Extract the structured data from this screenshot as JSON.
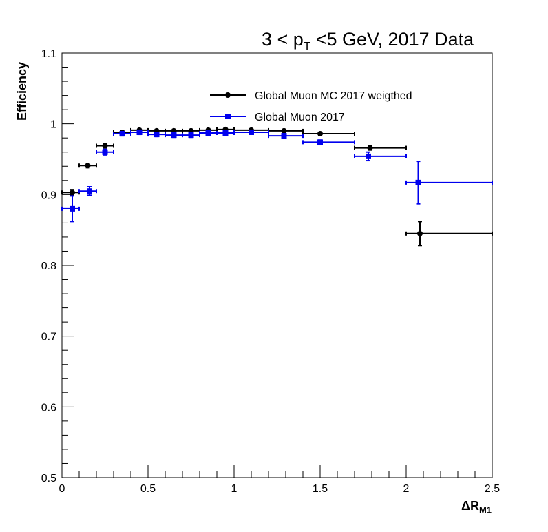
{
  "chart_data": {
    "type": "scatter",
    "title": {
      "prefix": "3 < p",
      "sub": "T",
      "suffix": " <5 GeV, 2017 Data"
    },
    "xlabel": {
      "main": "ΔR",
      "sub": "M1"
    },
    "ylabel": "Efficiency",
    "xlim": [
      0,
      2.5
    ],
    "ylim": [
      0.5,
      1.1
    ],
    "xticks": [
      0,
      0.5,
      1,
      1.5,
      2,
      2.5
    ],
    "xtick_labels": [
      "0",
      "0.5",
      "1",
      "1.5",
      "2",
      "2.5"
    ],
    "yticks": [
      0.5,
      0.6,
      0.7,
      0.8,
      0.9,
      1,
      1.1
    ],
    "ytick_labels": [
      "0.5",
      "0.6",
      "0.7",
      "0.8",
      "0.9",
      "1",
      "1.1"
    ],
    "grid": false,
    "legend_position": "top-right",
    "series": [
      {
        "name": "Global Muon MC 2017 weigthed",
        "color": "#000000",
        "marker": "circle",
        "points": [
          {
            "x": 0.06,
            "xlo": 0.0,
            "xhi": 0.1,
            "y": 0.903,
            "yerr": 0.004
          },
          {
            "x": 0.15,
            "xlo": 0.1,
            "xhi": 0.2,
            "y": 0.941,
            "yerr": 0.003
          },
          {
            "x": 0.25,
            "xlo": 0.2,
            "xhi": 0.3,
            "y": 0.969,
            "yerr": 0.003
          },
          {
            "x": 0.35,
            "xlo": 0.3,
            "xhi": 0.4,
            "y": 0.988,
            "yerr": 0.002
          },
          {
            "x": 0.45,
            "xlo": 0.4,
            "xhi": 0.5,
            "y": 0.991,
            "yerr": 0.002
          },
          {
            "x": 0.55,
            "xlo": 0.5,
            "xhi": 0.6,
            "y": 0.99,
            "yerr": 0.002
          },
          {
            "x": 0.65,
            "xlo": 0.6,
            "xhi": 0.7,
            "y": 0.99,
            "yerr": 0.002
          },
          {
            "x": 0.75,
            "xlo": 0.7,
            "xhi": 0.8,
            "y": 0.99,
            "yerr": 0.002
          },
          {
            "x": 0.85,
            "xlo": 0.8,
            "xhi": 0.9,
            "y": 0.991,
            "yerr": 0.002
          },
          {
            "x": 0.95,
            "xlo": 0.9,
            "xhi": 1.0,
            "y": 0.992,
            "yerr": 0.002
          },
          {
            "x": 1.1,
            "xlo": 1.0,
            "xhi": 1.2,
            "y": 0.991,
            "yerr": 0.002
          },
          {
            "x": 1.29,
            "xlo": 1.2,
            "xhi": 1.4,
            "y": 0.99,
            "yerr": 0.002
          },
          {
            "x": 1.5,
            "xlo": 1.4,
            "xhi": 1.7,
            "y": 0.986,
            "yerr": 0.002
          },
          {
            "x": 1.79,
            "xlo": 1.7,
            "xhi": 2.0,
            "y": 0.966,
            "yerr": 0.003
          },
          {
            "x": 2.08,
            "xlo": 2.0,
            "xhi": 2.5,
            "y": 0.845,
            "yerr": 0.017
          }
        ]
      },
      {
        "name": "Global Muon 2017",
        "color": "#0000ee",
        "marker": "square",
        "points": [
          {
            "x": 0.06,
            "xlo": 0.0,
            "xhi": 0.1,
            "y": 0.88,
            "yerr": 0.018
          },
          {
            "x": 0.16,
            "xlo": 0.1,
            "xhi": 0.2,
            "y": 0.905,
            "yerr": 0.006
          },
          {
            "x": 0.25,
            "xlo": 0.2,
            "xhi": 0.3,
            "y": 0.96,
            "yerr": 0.004
          },
          {
            "x": 0.35,
            "xlo": 0.3,
            "xhi": 0.4,
            "y": 0.986,
            "yerr": 0.003
          },
          {
            "x": 0.45,
            "xlo": 0.4,
            "xhi": 0.5,
            "y": 0.988,
            "yerr": 0.003
          },
          {
            "x": 0.55,
            "xlo": 0.5,
            "xhi": 0.6,
            "y": 0.985,
            "yerr": 0.003
          },
          {
            "x": 0.65,
            "xlo": 0.6,
            "xhi": 0.7,
            "y": 0.984,
            "yerr": 0.003
          },
          {
            "x": 0.75,
            "xlo": 0.7,
            "xhi": 0.8,
            "y": 0.984,
            "yerr": 0.003
          },
          {
            "x": 0.85,
            "xlo": 0.8,
            "xhi": 0.9,
            "y": 0.987,
            "yerr": 0.003
          },
          {
            "x": 0.95,
            "xlo": 0.9,
            "xhi": 1.0,
            "y": 0.987,
            "yerr": 0.003
          },
          {
            "x": 1.1,
            "xlo": 1.0,
            "xhi": 1.2,
            "y": 0.988,
            "yerr": 0.002
          },
          {
            "x": 1.29,
            "xlo": 1.2,
            "xhi": 1.4,
            "y": 0.983,
            "yerr": 0.003
          },
          {
            "x": 1.5,
            "xlo": 1.4,
            "xhi": 1.7,
            "y": 0.974,
            "yerr": 0.003
          },
          {
            "x": 1.78,
            "xlo": 1.7,
            "xhi": 2.0,
            "y": 0.954,
            "yerr": 0.006
          },
          {
            "x": 2.07,
            "xlo": 2.0,
            "xhi": 2.5,
            "y": 0.917,
            "yerr": 0.03
          }
        ]
      }
    ]
  }
}
